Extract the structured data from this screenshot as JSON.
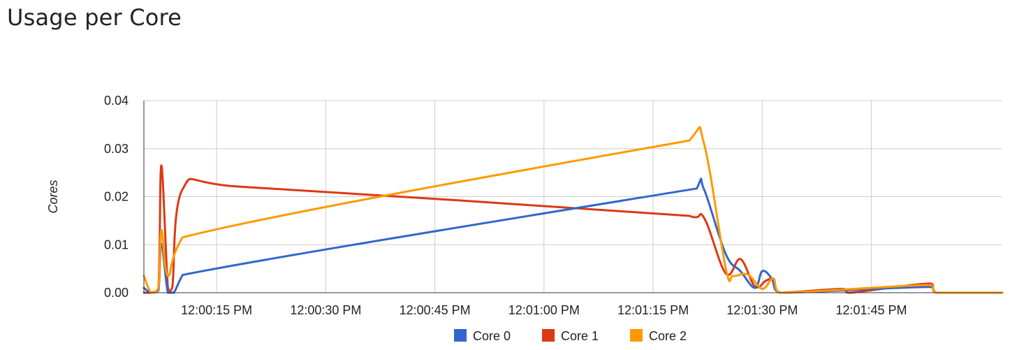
{
  "page": {
    "title": "Usage per Core"
  },
  "chart_data": {
    "type": "line",
    "title": "Usage per Core",
    "ylabel": "Cores",
    "xlabel": "",
    "ylim": [
      0,
      0.04
    ],
    "y_ticks": [
      "0.00",
      "0.01",
      "0.02",
      "0.03",
      "0.04"
    ],
    "y_tick_values": [
      0,
      0.01,
      0.02,
      0.03,
      0.04
    ],
    "xlim_seconds": [
      0,
      118
    ],
    "x_ticks": [
      {
        "label": "12:00:15 PM",
        "t": 10
      },
      {
        "label": "12:00:30 PM",
        "t": 25
      },
      {
        "label": "12:00:45 PM",
        "t": 40
      },
      {
        "label": "12:01:00 PM",
        "t": 55
      },
      {
        "label": "12:01:15 PM",
        "t": 70
      },
      {
        "label": "12:01:30 PM",
        "t": 85
      },
      {
        "label": "12:01:45 PM",
        "t": 100
      }
    ],
    "grid": true,
    "legend_position": "bottom",
    "series": [
      {
        "name": "Core 0",
        "color": "#3366cc",
        "points": [
          [
            0,
            0.001
          ],
          [
            1,
            0
          ],
          [
            2,
            0.0005
          ],
          [
            2.4,
            0.0102
          ],
          [
            3.3,
            0
          ],
          [
            4.1,
            0
          ],
          [
            5.3,
            0.0037
          ],
          [
            76,
            0.0217
          ],
          [
            77,
            0.0215
          ],
          [
            80,
            0.008
          ],
          [
            82,
            0.0045
          ],
          [
            84,
            0.001
          ],
          [
            85,
            0.0045
          ],
          [
            86.3,
            0.003
          ],
          [
            87.5,
            0
          ],
          [
            108,
            0.0012
          ],
          [
            109,
            0
          ],
          [
            118,
            0
          ]
        ]
      },
      {
        "name": "Core 1",
        "color": "#dc3912",
        "points": [
          [
            0,
            0
          ],
          [
            1,
            0
          ],
          [
            2,
            0.001
          ],
          [
            2.4,
            0.0265
          ],
          [
            3.3,
            0.001
          ],
          [
            3.9,
            0.001
          ],
          [
            5.3,
            0.0215
          ],
          [
            12,
            0.0222
          ],
          [
            75,
            0.016
          ],
          [
            77,
            0.0156
          ],
          [
            80,
            0.004
          ],
          [
            82,
            0.007
          ],
          [
            84,
            0.0013
          ],
          [
            85.5,
            0.0025
          ],
          [
            86.5,
            0.0028
          ],
          [
            87.5,
            0
          ],
          [
            96,
            0.0008
          ],
          [
            97,
            0
          ],
          [
            108,
            0.0019
          ],
          [
            109,
            0
          ],
          [
            118,
            0
          ]
        ]
      },
      {
        "name": "Core 2",
        "color": "#ff9900",
        "points": [
          [
            0,
            0.0035
          ],
          [
            1,
            0
          ],
          [
            2,
            0.001
          ],
          [
            2.4,
            0.013
          ],
          [
            3.3,
            0.0035
          ],
          [
            5.3,
            0.0115
          ],
          [
            75,
            0.0317
          ],
          [
            77,
            0.031
          ],
          [
            80,
            0.005
          ],
          [
            81,
            0.0035
          ],
          [
            83,
            0.0038
          ],
          [
            85,
            0.0008
          ],
          [
            86.5,
            0.003
          ],
          [
            87.5,
            0
          ],
          [
            108,
            0.0016
          ],
          [
            109,
            0
          ],
          [
            118,
            0
          ]
        ]
      }
    ]
  }
}
